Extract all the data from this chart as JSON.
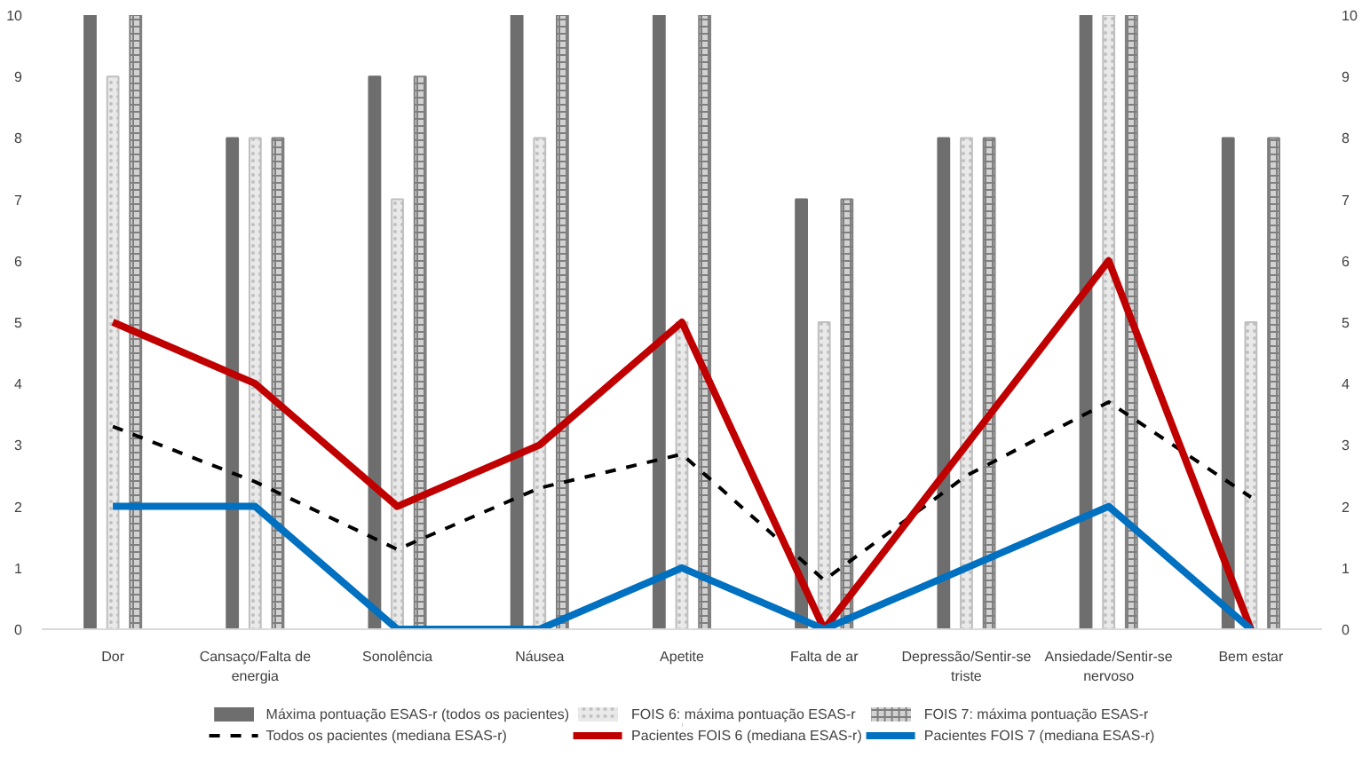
{
  "chart_data": {
    "type": "bar",
    "categories": [
      "Dor",
      "Cansaço/Falta de energia",
      "Sonolência",
      "Náusea",
      "Apetite",
      "Falta de ar",
      "Depressão/Sentir-se triste",
      "Ansiedade/Sentir-se nervoso",
      "Bem estar"
    ],
    "series": [
      {
        "name": "Máxima pontuação ESAS-r (todos os pacientes)",
        "color": "#6e6e6e",
        "values": [
          10,
          8,
          9,
          10,
          10,
          7,
          8,
          10,
          8
        ]
      },
      {
        "name": "FOIS 6: máxima pontuação ESAS-r",
        "color": "#bfbfbf",
        "values": [
          9,
          8,
          7,
          8,
          5,
          5,
          8,
          10,
          5
        ]
      },
      {
        "name": "FOIS 7: máxima pontuação ESAS-r",
        "color": "#7f7f7f",
        "values": [
          10,
          8,
          9,
          10,
          10,
          7,
          8,
          10,
          8
        ]
      },
      {
        "name": "Todos os pacientes (mediana ESAS-r)",
        "type": "line",
        "line_style": "dashed",
        "color": "#000000",
        "values": [
          3.3,
          2.4,
          1.3,
          2.3,
          2.85,
          0.8,
          2.5,
          3.7,
          2.15
        ]
      },
      {
        "name": "Pacientes FOIS 6 (mediana ESAS-r)",
        "type": "line",
        "color": "#c00000",
        "values": [
          5,
          4,
          2,
          3,
          5,
          0,
          3,
          6,
          0
        ]
      },
      {
        "name": "Pacientes FOIS 7 (mediana ESAS-r)",
        "type": "line",
        "color": "#0070c0",
        "values": [
          2,
          2,
          0,
          0,
          1,
          0,
          1,
          2,
          0
        ]
      }
    ],
    "ylim": [
      0,
      10
    ],
    "yticks": [
      0,
      1,
      2,
      3,
      4,
      5,
      6,
      7,
      8,
      9,
      10
    ],
    "y2lim": [
      0,
      10
    ],
    "y2ticks": [
      0,
      1,
      2,
      3,
      4,
      5,
      6,
      7,
      8,
      9,
      10
    ],
    "grid": false,
    "legend": "bottom"
  }
}
